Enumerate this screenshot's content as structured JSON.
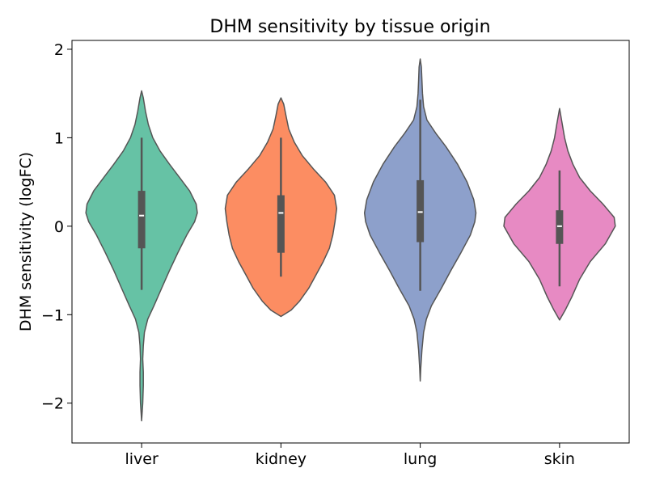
{
  "chart_data": {
    "type": "violin",
    "title": "DHM sensitivity by tissue origin",
    "xlabel": "",
    "ylabel": "DHM sensitivity (logFC)",
    "ylim": [
      -2.45,
      2.1
    ],
    "yticks": [
      -2,
      -1,
      0,
      1,
      2
    ],
    "yticklabels": [
      "−2",
      "−1",
      "0",
      "1",
      "2"
    ],
    "grid": false,
    "categories": [
      "liver",
      "kidney",
      "lung",
      "skin"
    ],
    "colors": [
      "#66c2a5",
      "#fc8d62",
      "#8da0cb",
      "#e78ac3"
    ],
    "groups": [
      {
        "name": "liver",
        "median": 0.12,
        "q1": -0.25,
        "q3": 0.4,
        "whisker_low": -0.72,
        "whisker_high": 1.0,
        "kde_min": -2.2,
        "kde_max": 1.53,
        "profile": [
          [
            -2.2,
            0.0
          ],
          [
            -2.0,
            0.02
          ],
          [
            -1.8,
            0.03
          ],
          [
            -1.65,
            0.03
          ],
          [
            -1.5,
            0.02
          ],
          [
            -1.35,
            0.03
          ],
          [
            -1.2,
            0.05
          ],
          [
            -1.05,
            0.11
          ],
          [
            -0.9,
            0.22
          ],
          [
            -0.7,
            0.36
          ],
          [
            -0.5,
            0.5
          ],
          [
            -0.3,
            0.65
          ],
          [
            -0.1,
            0.81
          ],
          [
            0.05,
            0.95
          ],
          [
            0.15,
            1.0
          ],
          [
            0.25,
            0.98
          ],
          [
            0.4,
            0.86
          ],
          [
            0.55,
            0.68
          ],
          [
            0.7,
            0.5
          ],
          [
            0.85,
            0.33
          ],
          [
            1.0,
            0.2
          ],
          [
            1.15,
            0.12
          ],
          [
            1.3,
            0.07
          ],
          [
            1.45,
            0.03
          ],
          [
            1.53,
            0.0
          ]
        ]
      },
      {
        "name": "kidney",
        "median": 0.15,
        "q1": -0.3,
        "q3": 0.35,
        "whisker_low": -0.57,
        "whisker_high": 1.0,
        "kde_min": -1.02,
        "kde_max": 1.45,
        "profile": [
          [
            -1.02,
            0.0
          ],
          [
            -0.95,
            0.18
          ],
          [
            -0.85,
            0.33
          ],
          [
            -0.7,
            0.5
          ],
          [
            -0.55,
            0.63
          ],
          [
            -0.4,
            0.76
          ],
          [
            -0.25,
            0.87
          ],
          [
            -0.1,
            0.93
          ],
          [
            0.05,
            0.97
          ],
          [
            0.2,
            1.0
          ],
          [
            0.35,
            0.96
          ],
          [
            0.5,
            0.8
          ],
          [
            0.65,
            0.58
          ],
          [
            0.8,
            0.38
          ],
          [
            0.95,
            0.24
          ],
          [
            1.1,
            0.14
          ],
          [
            1.25,
            0.09
          ],
          [
            1.38,
            0.05
          ],
          [
            1.45,
            0.0
          ]
        ]
      },
      {
        "name": "lung",
        "median": 0.16,
        "q1": -0.18,
        "q3": 0.52,
        "whisker_low": -0.73,
        "whisker_high": 1.43,
        "kde_min": -1.75,
        "kde_max": 1.89,
        "profile": [
          [
            -1.75,
            0.0
          ],
          [
            -1.6,
            0.01
          ],
          [
            -1.4,
            0.03
          ],
          [
            -1.2,
            0.06
          ],
          [
            -1.05,
            0.11
          ],
          [
            -0.9,
            0.2
          ],
          [
            -0.7,
            0.38
          ],
          [
            -0.5,
            0.55
          ],
          [
            -0.3,
            0.73
          ],
          [
            -0.1,
            0.9
          ],
          [
            0.05,
            0.98
          ],
          [
            0.15,
            1.0
          ],
          [
            0.3,
            0.96
          ],
          [
            0.5,
            0.84
          ],
          [
            0.7,
            0.67
          ],
          [
            0.9,
            0.46
          ],
          [
            1.05,
            0.28
          ],
          [
            1.2,
            0.12
          ],
          [
            1.35,
            0.06
          ],
          [
            1.5,
            0.04
          ],
          [
            1.65,
            0.03
          ],
          [
            1.8,
            0.02
          ],
          [
            1.89,
            0.0
          ]
        ]
      },
      {
        "name": "skin",
        "median": 0.0,
        "q1": -0.2,
        "q3": 0.18,
        "whisker_low": -0.68,
        "whisker_high": 0.63,
        "kde_min": -1.06,
        "kde_max": 1.33,
        "profile": [
          [
            -1.06,
            0.0
          ],
          [
            -0.95,
            0.1
          ],
          [
            -0.8,
            0.22
          ],
          [
            -0.6,
            0.36
          ],
          [
            -0.4,
            0.55
          ],
          [
            -0.2,
            0.82
          ],
          [
            0.0,
            1.0
          ],
          [
            0.1,
            0.98
          ],
          [
            0.25,
            0.78
          ],
          [
            0.4,
            0.55
          ],
          [
            0.55,
            0.36
          ],
          [
            0.7,
            0.24
          ],
          [
            0.85,
            0.15
          ],
          [
            1.0,
            0.09
          ],
          [
            1.15,
            0.05
          ],
          [
            1.33,
            0.0
          ]
        ]
      }
    ]
  }
}
